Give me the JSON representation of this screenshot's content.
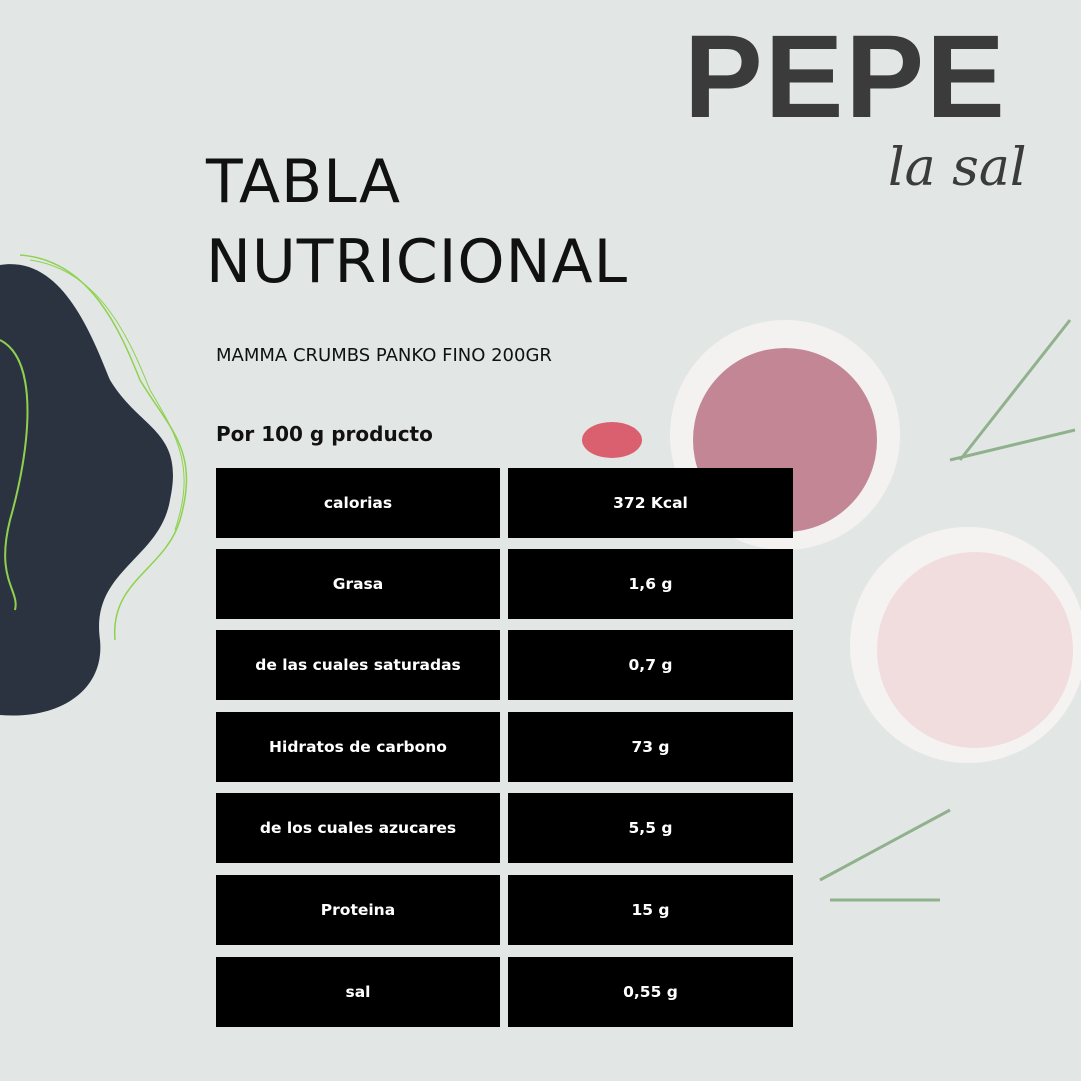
{
  "brand": {
    "name": "PEPE",
    "tagline": "la sal"
  },
  "title": [
    "TABLA",
    "NUTRICIONAL"
  ],
  "product": "MAMMA CRUMBS PANKO FINO 200GR",
  "per_label": "Por 100 g producto",
  "rows": [
    {
      "label": "calorias",
      "value": "372 Kcal"
    },
    {
      "label": "Grasa",
      "value": "1,6 g"
    },
    {
      "label": "de las cuales saturadas",
      "value": "0,7 g"
    },
    {
      "label": "Hidratos de carbono",
      "value": "73 g"
    },
    {
      "label": "de los cuales azucares",
      "value": "5,5 g"
    },
    {
      "label": "Proteina",
      "value": "15 g"
    },
    {
      "label": "sal",
      "value": "0,55 g"
    }
  ],
  "colors": {
    "background": "#e2e7e5",
    "table": "#000000",
    "blob": "#2b3340",
    "accent_lines": "#8fd14f"
  }
}
